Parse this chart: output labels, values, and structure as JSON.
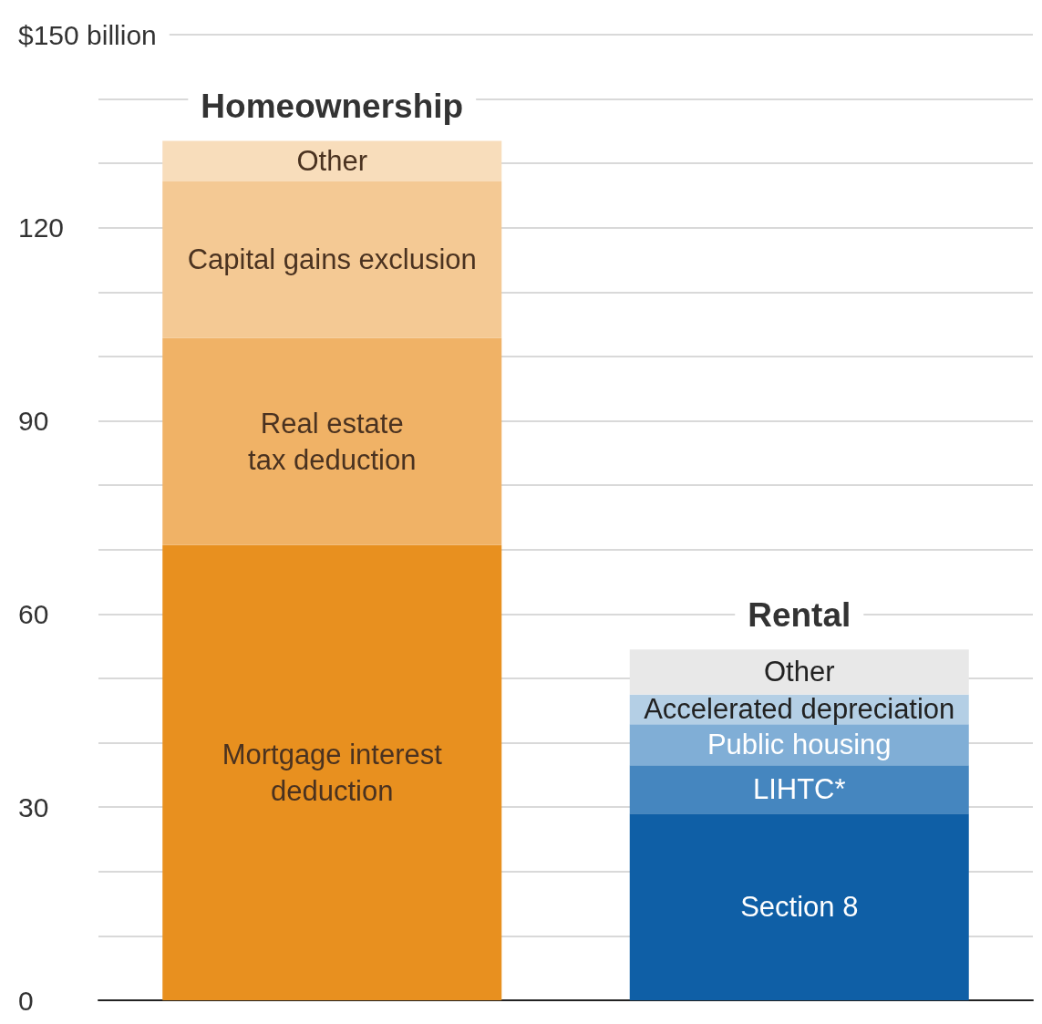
{
  "chart_data": {
    "type": "bar",
    "stacked": true,
    "categories": [
      "Homeownership",
      "Rental"
    ],
    "series": [
      {
        "name": "Mortgage interest\ndeduction",
        "color": "#e8901f",
        "values": [
          70.7,
          null
        ]
      },
      {
        "name": "Real estate\ntax deduction",
        "color": "#f0b266",
        "values": [
          32.2,
          null
        ]
      },
      {
        "name": "Capital gains exclusion",
        "color": "#f4c994",
        "values": [
          24.3,
          null
        ]
      },
      {
        "name": "Other",
        "color": "#f8ddbb",
        "values": [
          6.3,
          null
        ]
      },
      {
        "name": "Section 8",
        "color": "#0f5fa6",
        "values": [
          null,
          29.0
        ]
      },
      {
        "name": "LIHTC*",
        "color": "#4586bf",
        "values": [
          null,
          7.5
        ]
      },
      {
        "name": "Public housing",
        "color": "#80aed6",
        "values": [
          null,
          6.4
        ]
      },
      {
        "name": "Accelerated depreciation",
        "color": "#b4cfe5",
        "values": [
          null,
          4.6
        ]
      },
      {
        "name": "Other",
        "color": "#e8e8e8",
        "values": [
          null,
          7.0
        ]
      }
    ],
    "ylim": [
      0,
      150
    ],
    "yticks": [
      0,
      {
        "value": 10,
        "label": null
      },
      {
        "value": 20,
        "label": null
      },
      30,
      {
        "value": 40,
        "label": null
      },
      {
        "value": 50,
        "label": null
      },
      60,
      {
        "value": 70,
        "label": null
      },
      {
        "value": 80,
        "label": null
      },
      90,
      {
        "value": 100,
        "label": null
      },
      {
        "value": 110,
        "label": null
      },
      120,
      {
        "value": 130,
        "label": null
      },
      {
        "value": 140,
        "label": null
      },
      {
        "value": 150,
        "label": "$150 billion"
      }
    ],
    "grid": "y",
    "legend": false,
    "tick_labels": "y"
  }
}
